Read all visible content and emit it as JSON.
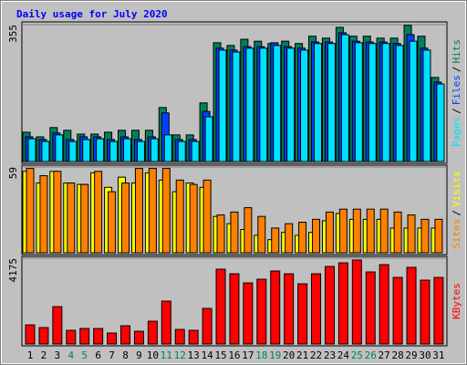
{
  "chart_data": [
    {
      "type": "bar",
      "title": "Daily usage for July 2020",
      "ylim": [
        0,
        355
      ],
      "yticks": [
        355
      ],
      "legend_separator": "/",
      "series": [
        {
          "name": "Hits",
          "color": "#00805c",
          "values": [
            76,
            64,
            88,
            81,
            71,
            71,
            76,
            81,
            81,
            81,
            140,
            69,
            69,
            152,
            308,
            301,
            317,
            312,
            306,
            312,
            306,
            325,
            320,
            348,
            325,
            325,
            320,
            320,
            353,
            325,
            218
          ]
        },
        {
          "name": "Files",
          "color": "#0040ff",
          "values": [
            64,
            57,
            74,
            57,
            64,
            64,
            57,
            64,
            57,
            64,
            126,
            57,
            57,
            130,
            294,
            289,
            298,
            298,
            308,
            298,
            294,
            310,
            310,
            334,
            312,
            310,
            310,
            306,
            329,
            294,
            206
          ]
        },
        {
          "name": "Pages",
          "color": "#00e0ff",
          "values": [
            59,
            52,
            69,
            52,
            57,
            59,
            52,
            59,
            52,
            59,
            69,
            52,
            52,
            116,
            289,
            284,
            294,
            294,
            301,
            294,
            289,
            306,
            306,
            329,
            308,
            306,
            306,
            301,
            312,
            289,
            201
          ]
        }
      ]
    },
    {
      "type": "bar",
      "ylim": [
        0,
        59
      ],
      "yticks": [
        59
      ],
      "legend_separator": "/",
      "series": [
        {
          "name": "Visits",
          "color": "#ffff00",
          "values": [
            56,
            48,
            56,
            48,
            47,
            55,
            45,
            52,
            48,
            55,
            50,
            42,
            48,
            45,
            25,
            20,
            16,
            12,
            9,
            14,
            12,
            14,
            22,
            27,
            23,
            23,
            23,
            17,
            17,
            17,
            17
          ]
        },
        {
          "name": "Sites",
          "color": "#ff8000",
          "values": [
            58,
            53,
            56,
            48,
            47,
            56,
            42,
            48,
            58,
            58,
            58,
            50,
            47,
            50,
            26,
            28,
            31,
            25,
            17,
            20,
            21,
            23,
            28,
            30,
            30,
            30,
            30,
            28,
            26,
            23,
            23
          ]
        }
      ]
    },
    {
      "type": "bar",
      "ylim": [
        0,
        4175
      ],
      "yticks": [
        4175
      ],
      "categories": [
        "1",
        "2",
        "3",
        "4",
        "5",
        "6",
        "7",
        "8",
        "9",
        "10",
        "11",
        "12",
        "13",
        "14",
        "15",
        "16",
        "17",
        "18",
        "19",
        "20",
        "21",
        "22",
        "23",
        "24",
        "25",
        "26",
        "27",
        "28",
        "29",
        "30",
        "31"
      ],
      "highlight_color": "#00805c",
      "highlight_indices": [
        3,
        4,
        10,
        11,
        17,
        18,
        24,
        25
      ],
      "series": [
        {
          "name": "KBytes",
          "color": "#ff0000",
          "values": [
            932,
            800,
            1820,
            666,
            755,
            755,
            533,
            888,
            622,
            1110,
            2087,
            710,
            666,
            1732,
            3641,
            3419,
            2975,
            3152,
            3552,
            3419,
            2930,
            3419,
            3774,
            3952,
            4085,
            3508,
            3863,
            3241,
            3730,
            3108,
            3241
          ]
        }
      ]
    }
  ]
}
